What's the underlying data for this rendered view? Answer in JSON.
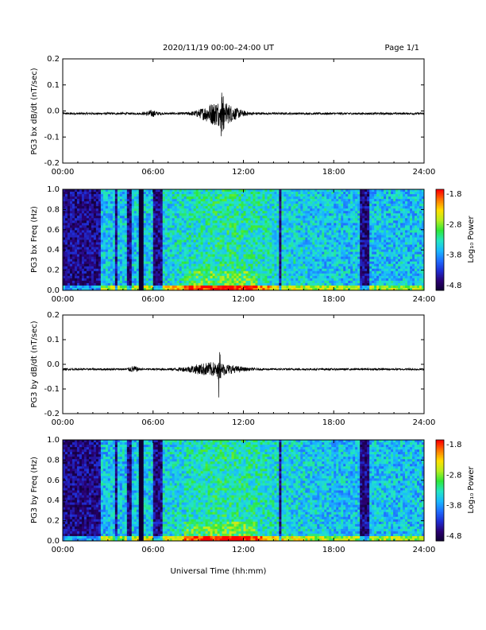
{
  "header": {
    "title": "2020/11/19  00:00–24:00 UT",
    "page": "Page 1/1"
  },
  "footer": {
    "xlabel": "Universal Time (hh:mm)"
  },
  "colors": {
    "trace": "#000000",
    "colormap": [
      "#0d0030",
      "#2a0070",
      "#1f2bd0",
      "#1f6cff",
      "#19b9ff",
      "#22e6c4",
      "#2ee83a",
      "#b6ee1f",
      "#ffe000",
      "#ff7a00",
      "#ff0000"
    ]
  },
  "chart_data": [
    {
      "type": "line",
      "ylabel": "PG3 bx dB/dt (nT/sec)",
      "xlim": [
        "00:00",
        "24:00"
      ],
      "ylim": [
        -0.2,
        0.2
      ],
      "yticks": [
        "0.2",
        "0.1",
        "0.0",
        "-0.1",
        "-0.2"
      ],
      "xticks": [
        "00:00",
        "06:00",
        "12:00",
        "18:00",
        "24:00"
      ],
      "series": [
        {
          "baseline": -0.01,
          "background_amplitude": 0.004,
          "events": [
            {
              "center_hour": 10.4,
              "width_hours": 1.2,
              "amplitude": 0.045
            },
            {
              "center_hour": 10.6,
              "width_hours": 0.12,
              "amplitude_up": 0.1,
              "amplitude_down": -0.17
            },
            {
              "center_hour": 5.9,
              "width_hours": 0.4,
              "amplitude": 0.01
            }
          ]
        }
      ]
    },
    {
      "type": "heatmap",
      "ylabel": "PG3 bx Freq (Hz)",
      "xlim": [
        "00:00",
        "24:00"
      ],
      "ylim": [
        0.0,
        1.0
      ],
      "yticks": [
        "1.0",
        "0.8",
        "0.6",
        "0.4",
        "0.2",
        "0.0"
      ],
      "xticks": [
        "00:00",
        "06:00",
        "12:00",
        "18:00",
        "24:00"
      ],
      "colorbar": {
        "label": "Log₁₀ Power",
        "ticks": [
          "-1.8",
          "-2.8",
          "-3.8",
          "-4.8"
        ],
        "range": [
          -4.8,
          -1.8
        ]
      },
      "data_gap_hour": 5.2,
      "dark_bands_hours": [
        [
          0.0,
          2.6
        ],
        [
          3.5,
          3.7
        ],
        [
          4.3,
          4.6
        ],
        [
          6.0,
          6.6
        ],
        [
          14.3,
          14.6
        ],
        [
          19.8,
          20.3
        ]
      ]
    },
    {
      "type": "line",
      "ylabel": "PG3 by dB/dt (nT/sec)",
      "xlim": [
        "00:00",
        "24:00"
      ],
      "ylim": [
        -0.2,
        0.2
      ],
      "yticks": [
        "0.2",
        "0.1",
        "0.0",
        "-0.1",
        "-0.2"
      ],
      "xticks": [
        "00:00",
        "06:00",
        "12:00",
        "18:00",
        "24:00"
      ],
      "series": [
        {
          "baseline": -0.02,
          "background_amplitude": 0.004,
          "events": [
            {
              "center_hour": 10.0,
              "width_hours": 1.6,
              "amplitude": 0.025
            },
            {
              "center_hour": 10.4,
              "width_hours": 0.12,
              "amplitude_up": 0.09,
              "amplitude_down": -0.14
            },
            {
              "center_hour": 4.7,
              "width_hours": 0.3,
              "amplitude": 0.01
            }
          ]
        }
      ]
    },
    {
      "type": "heatmap",
      "ylabel": "PG3 by Freq (Hz)",
      "xlim": [
        "00:00",
        "24:00"
      ],
      "ylim": [
        0.0,
        1.0
      ],
      "yticks": [
        "1.0",
        "0.8",
        "0.6",
        "0.4",
        "0.2",
        "0.0"
      ],
      "xticks": [
        "00:00",
        "06:00",
        "12:00",
        "18:00",
        "24:00"
      ],
      "colorbar": {
        "label": "Log₁₀ Power",
        "ticks": [
          "-1.8",
          "-2.8",
          "-3.8",
          "-4.8"
        ],
        "range": [
          -4.8,
          -1.8
        ]
      },
      "data_gap_hour": 5.2,
      "dark_bands_hours": [
        [
          0.0,
          2.6
        ],
        [
          3.5,
          3.7
        ],
        [
          4.3,
          4.6
        ],
        [
          6.0,
          6.6
        ],
        [
          14.3,
          14.6
        ],
        [
          19.8,
          20.3
        ]
      ]
    }
  ]
}
